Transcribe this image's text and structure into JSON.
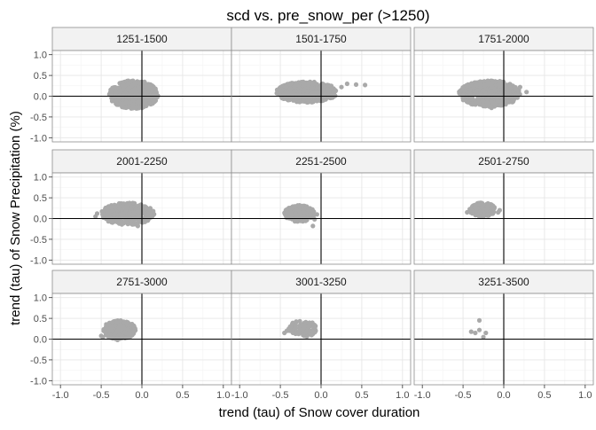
{
  "chart_data": {
    "type": "scatter",
    "title": "scd vs. pre_snow_per (>1250)",
    "xlabel": "trend (tau) of Snow cover duration",
    "ylabel": "trend (tau) of Snow Precipitation (%)",
    "xlim": [
      -1.1,
      1.1
    ],
    "ylim": [
      -1.1,
      1.1
    ],
    "x_ticks": [
      "-1.0",
      "-0.5",
      "0.0",
      "0.5",
      "1.0"
    ],
    "y_ticks": [
      "1.0",
      "0.5",
      "0.0",
      "-0.5",
      "-1.0"
    ],
    "reference_lines": {
      "x": 0,
      "y": 0
    },
    "grid": true,
    "point_color": "#a9a9a9",
    "facet_layout": {
      "rows": 3,
      "cols": 3
    },
    "facets": [
      {
        "label": "1251-1500",
        "clusters": [
          {
            "n": 520,
            "x": [
              -0.4,
              0.2
            ],
            "y": [
              -0.3,
              0.38
            ]
          }
        ],
        "points": [
          [
            0.19,
            0.0
          ],
          [
            0.15,
            0.05
          ]
        ]
      },
      {
        "label": "1501-1750",
        "clusters": [
          {
            "n": 520,
            "x": [
              -0.55,
              0.2
            ],
            "y": [
              -0.15,
              0.35
            ]
          }
        ],
        "points": [
          [
            0.32,
            0.3
          ],
          [
            0.43,
            0.28
          ],
          [
            0.54,
            0.27
          ],
          [
            0.25,
            0.22
          ]
        ]
      },
      {
        "label": "1751-2000",
        "clusters": [
          {
            "n": 520,
            "x": [
              -0.55,
              0.2
            ],
            "y": [
              -0.25,
              0.38
            ]
          }
        ],
        "points": [
          [
            0.28,
            0.1
          ],
          [
            -0.15,
            -0.28
          ],
          [
            0.2,
            0.22
          ]
        ]
      },
      {
        "label": "2001-2250",
        "clusters": [
          {
            "n": 360,
            "x": [
              -0.5,
              0.15
            ],
            "y": [
              -0.15,
              0.38
            ]
          }
        ],
        "points": [
          [
            -0.57,
            0.05
          ],
          [
            -0.55,
            0.12
          ],
          [
            -0.05,
            -0.18
          ]
        ]
      },
      {
        "label": "2251-2500",
        "clusters": [
          {
            "n": 260,
            "x": [
              -0.45,
              -0.08
            ],
            "y": [
              -0.08,
              0.32
            ]
          }
        ],
        "points": [
          [
            -0.1,
            -0.18
          ],
          [
            -0.05,
            0.1
          ],
          [
            -0.08,
            -0.02
          ]
        ]
      },
      {
        "label": "2501-2750",
        "clusters": [
          {
            "n": 220,
            "x": [
              -0.42,
              -0.1
            ],
            "y": [
              0.05,
              0.38
            ]
          }
        ],
        "points": [
          [
            -0.07,
            0.15
          ],
          [
            -0.05,
            0.2
          ],
          [
            -0.45,
            0.15
          ]
        ]
      },
      {
        "label": "2751-3000",
        "clusters": [
          {
            "n": 260,
            "x": [
              -0.48,
              -0.08
            ],
            "y": [
              0.0,
              0.45
            ]
          }
        ],
        "points": [
          [
            -0.48,
            0.05
          ],
          [
            -0.5,
            0.08
          ],
          [
            -0.3,
            -0.02
          ]
        ]
      },
      {
        "label": "3001-3250",
        "clusters": [
          {
            "n": 100,
            "x": [
              -0.4,
              -0.05
            ],
            "y": [
              0.05,
              0.45
            ]
          }
        ],
        "points": [
          [
            -0.45,
            0.15
          ],
          [
            -0.42,
            0.2
          ],
          [
            -0.38,
            0.3
          ]
        ]
      },
      {
        "label": "3251-3500",
        "clusters": [],
        "points": [
          [
            -0.3,
            0.45
          ],
          [
            -0.3,
            0.22
          ],
          [
            -0.22,
            0.15
          ],
          [
            -0.35,
            0.15
          ],
          [
            -0.4,
            0.18
          ],
          [
            -0.25,
            0.05
          ]
        ]
      }
    ]
  }
}
